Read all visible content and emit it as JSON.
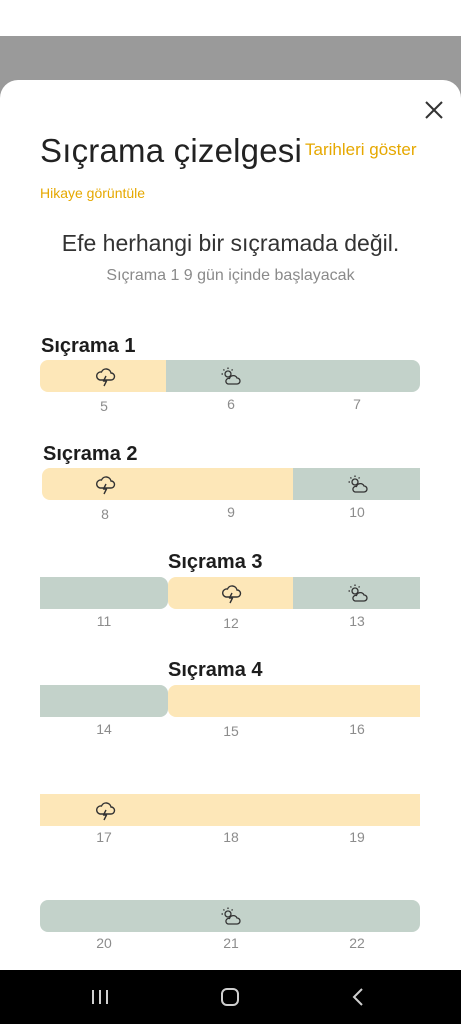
{
  "sheet": {
    "title": "Sıçrama çizelgesi",
    "show_dates_label": "Tarihleri göster",
    "story_link_label": "Hikaye görüntüle",
    "status_main": "Efe herhangi bir sıçramada değil.",
    "status_sub": "Sıçrama 1 9 gün içinde başlayacak"
  },
  "leaps": [
    {
      "label": "Sıçrama 1"
    },
    {
      "label": "Sıçrama 2"
    },
    {
      "label": "Sıçrama 3"
    },
    {
      "label": "Sıçrama 4"
    }
  ],
  "weeks": [
    {
      "days": [
        "5",
        "6",
        "7"
      ]
    },
    {
      "days": [
        "8",
        "9",
        "10"
      ]
    },
    {
      "days": [
        "11",
        "12",
        "13"
      ]
    },
    {
      "days": [
        "14",
        "15",
        "16"
      ]
    },
    {
      "days": [
        "17",
        "18",
        "19"
      ]
    },
    {
      "days": [
        "20",
        "21",
        "22"
      ]
    }
  ],
  "legend_colors": {
    "stormy": "#fde7b8",
    "sunny": "#c3d2ca",
    "accent": "#e6a800"
  },
  "icons": {
    "stormy": "storm-cloud-icon",
    "sunny": "sun-cloud-icon",
    "close": "close-icon"
  }
}
